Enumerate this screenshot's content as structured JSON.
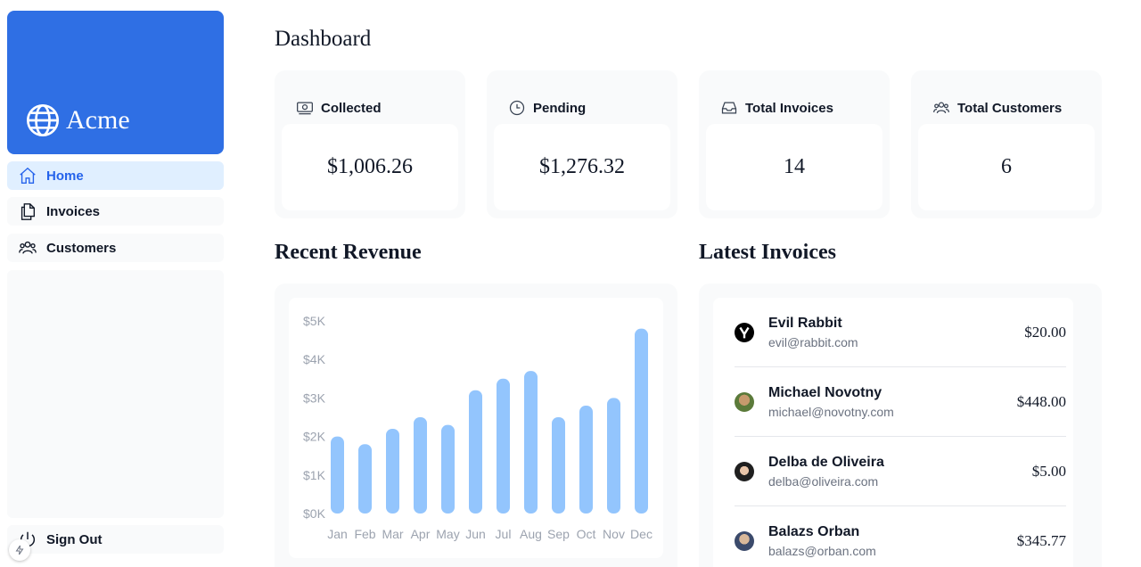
{
  "brand": {
    "name": "Acme"
  },
  "sidebar": {
    "items": [
      {
        "label": "Home",
        "icon": "home-icon",
        "active": true
      },
      {
        "label": "Invoices",
        "icon": "documents-icon",
        "active": false
      },
      {
        "label": "Customers",
        "icon": "users-icon",
        "active": false
      }
    ],
    "signout_label": "Sign Out"
  },
  "page": {
    "title": "Dashboard"
  },
  "cards": [
    {
      "title": "Collected",
      "value": "$1,006.26",
      "icon": "banknotes-icon"
    },
    {
      "title": "Pending",
      "value": "$1,276.32",
      "icon": "clock-icon"
    },
    {
      "title": "Total Invoices",
      "value": "14",
      "icon": "inbox-icon"
    },
    {
      "title": "Total Customers",
      "value": "6",
      "icon": "user-group-icon"
    }
  ],
  "revenue": {
    "title": "Recent Revenue"
  },
  "chart_data": {
    "type": "bar",
    "categories": [
      "Jan",
      "Feb",
      "Mar",
      "Apr",
      "May",
      "Jun",
      "Jul",
      "Aug",
      "Sep",
      "Oct",
      "Nov",
      "Dec"
    ],
    "values": [
      2000,
      1800,
      2200,
      2500,
      2300,
      3200,
      3500,
      3700,
      2500,
      2800,
      3000,
      4800
    ],
    "yticks": [
      "$5K",
      "$4K",
      "$3K",
      "$2K",
      "$1K",
      "$0K"
    ],
    "ylim": [
      0,
      5000
    ],
    "color": "#93c5fd",
    "title": "",
    "xlabel": "",
    "ylabel": ""
  },
  "latest": {
    "title": "Latest Invoices",
    "items": [
      {
        "name": "Evil Rabbit",
        "email": "evil@rabbit.com",
        "amount": "$20.00"
      },
      {
        "name": "Michael Novotny",
        "email": "michael@novotny.com",
        "amount": "$448.00"
      },
      {
        "name": "Delba de Oliveira",
        "email": "delba@oliveira.com",
        "amount": "$5.00"
      },
      {
        "name": "Balazs Orban",
        "email": "balazs@orban.com",
        "amount": "$345.77"
      }
    ]
  },
  "colors": {
    "brand": "#2f6fe4",
    "active_nav_bg": "#e0efff",
    "active_nav_text": "#2563eb",
    "bar": "#93c5fd"
  }
}
